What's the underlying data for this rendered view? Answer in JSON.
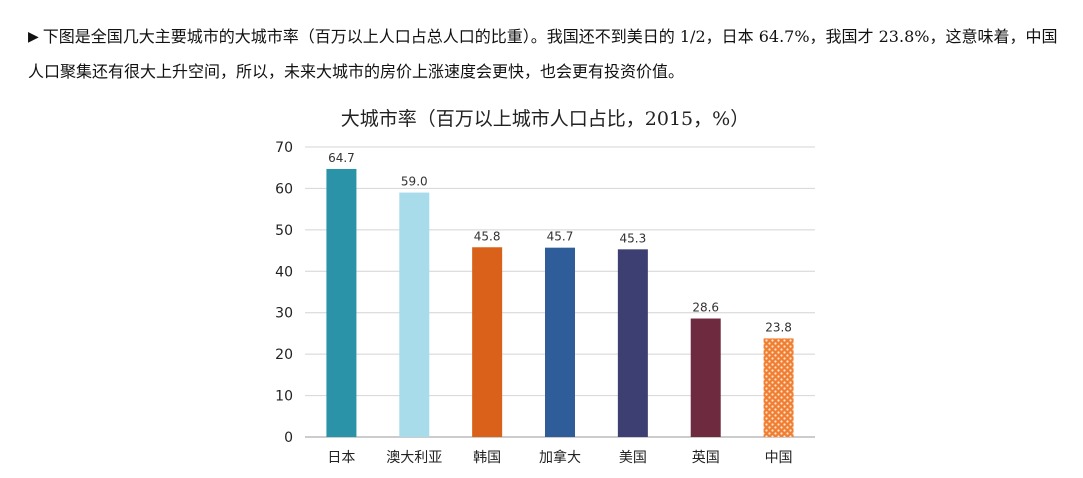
{
  "intro": {
    "marker": "▶",
    "text": "下图是全国几大主要城市的大城市率（百万以上人口占总人口的比重）。我国还不到美日的 1/2，日本 64.7%，我国才 23.8%，这意味着，中国人口聚集还有很大上升空间，所以，未来大城市的房价上涨速度会更快，也会更有投资价值。"
  },
  "chart_data": {
    "type": "bar",
    "title": "大城市率（百万以上城市人口占比，2015，%）",
    "xlabel": "",
    "ylabel": "",
    "ylim": [
      0,
      70
    ],
    "yticks": [
      0,
      10,
      20,
      30,
      40,
      50,
      60,
      70
    ],
    "grid": true,
    "categories": [
      "日本",
      "澳大利亚",
      "韩国",
      "加拿大",
      "美国",
      "英国",
      "中国"
    ],
    "values": [
      64.7,
      59.0,
      45.8,
      45.7,
      45.3,
      28.6,
      23.8
    ],
    "data_labels": [
      "64.7",
      "59.0",
      "45.8",
      "45.7",
      "45.3",
      "28.6",
      "23.8"
    ],
    "colors": [
      "#2a93a8",
      "#a8dcea",
      "#d9611a",
      "#2f5d99",
      "#3d3f72",
      "#6e2b3f",
      "#f07f34"
    ],
    "patterned": [
      false,
      false,
      false,
      false,
      false,
      false,
      true
    ]
  }
}
